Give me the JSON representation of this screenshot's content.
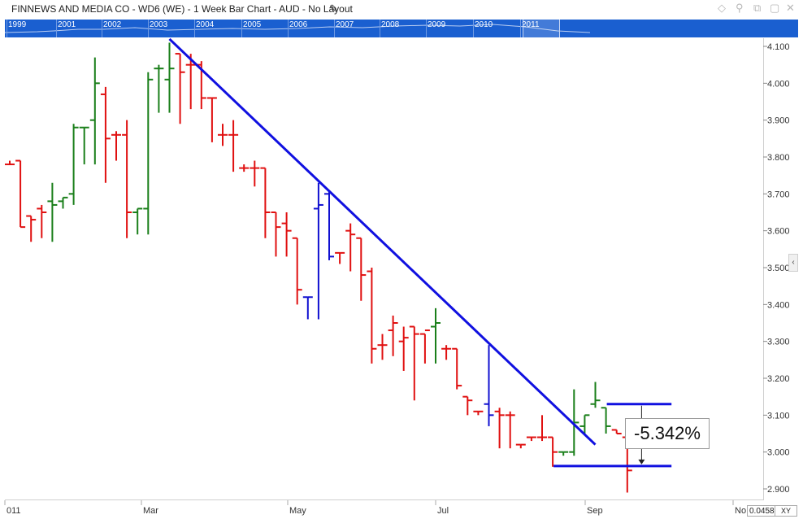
{
  "window": {
    "title": "FINNEWS AND MEDIA CO - WD6 (WE) - 1 Week Bar Chart - AUD - No Layout",
    "icons": [
      "diamond-icon",
      "pin-icon",
      "restore-icon",
      "maximize-icon",
      "close-icon"
    ]
  },
  "navigator": {
    "years": [
      "1999",
      "2001",
      "2002",
      "2003",
      "2004",
      "2005",
      "2006",
      "2007",
      "2008",
      "2009",
      "2010",
      "2011"
    ]
  },
  "chart_data": {
    "type": "ohlc",
    "currency": "AUD",
    "interval": "1 Week",
    "x_tick_labels": [
      "011",
      "Mar",
      "May",
      "Jul",
      "Sep",
      "No"
    ],
    "y_tick_labels": [
      "4.100",
      "4.000",
      "3.900",
      "3.800",
      "3.700",
      "3.600",
      "3.500",
      "3.400",
      "3.300",
      "3.200",
      "3.100",
      "3.000",
      "2.900"
    ],
    "ylim": [
      2.88,
      4.12
    ],
    "colors": {
      "up": "#1a7f1a",
      "down": "#e01010",
      "neutral": "#1010d0",
      "drawing": "#1010e0"
    },
    "bars": [
      {
        "o": 3.78,
        "h": 3.79,
        "l": 3.78,
        "c": 3.78,
        "dir": "down"
      },
      {
        "o": 3.79,
        "h": 3.79,
        "l": 3.61,
        "c": 3.61,
        "dir": "down"
      },
      {
        "o": 3.64,
        "h": 3.64,
        "l": 3.57,
        "c": 3.63,
        "dir": "down"
      },
      {
        "o": 3.66,
        "h": 3.67,
        "l": 3.58,
        "c": 3.65,
        "dir": "down"
      },
      {
        "o": 3.68,
        "h": 3.73,
        "l": 3.57,
        "c": 3.67,
        "dir": "up"
      },
      {
        "o": 3.68,
        "h": 3.69,
        "l": 3.66,
        "c": 3.69,
        "dir": "up"
      },
      {
        "o": 3.7,
        "h": 3.89,
        "l": 3.67,
        "c": 3.88,
        "dir": "up"
      },
      {
        "o": 3.88,
        "h": 3.88,
        "l": 3.78,
        "c": 3.88,
        "dir": "up"
      },
      {
        "o": 3.9,
        "h": 4.07,
        "l": 3.78,
        "c": 4.0,
        "dir": "up"
      },
      {
        "o": 3.97,
        "h": 3.99,
        "l": 3.73,
        "c": 3.85,
        "dir": "down"
      },
      {
        "o": 3.86,
        "h": 3.87,
        "l": 3.79,
        "c": 3.86,
        "dir": "down"
      },
      {
        "o": 3.86,
        "h": 3.9,
        "l": 3.58,
        "c": 3.65,
        "dir": "down"
      },
      {
        "o": 3.65,
        "h": 3.66,
        "l": 3.59,
        "c": 3.66,
        "dir": "up"
      },
      {
        "o": 3.66,
        "h": 4.03,
        "l": 3.59,
        "c": 4.01,
        "dir": "up"
      },
      {
        "o": 4.04,
        "h": 4.05,
        "l": 3.92,
        "c": 4.04,
        "dir": "up"
      },
      {
        "o": 4.01,
        "h": 4.11,
        "l": 3.92,
        "c": 4.04,
        "dir": "up"
      },
      {
        "o": 4.08,
        "h": 4.08,
        "l": 3.89,
        "c": 4.03,
        "dir": "down"
      },
      {
        "o": 4.05,
        "h": 4.08,
        "l": 3.93,
        "c": 4.05,
        "dir": "down"
      },
      {
        "o": 4.05,
        "h": 4.06,
        "l": 3.93,
        "c": 3.96,
        "dir": "down"
      },
      {
        "o": 3.96,
        "h": 3.96,
        "l": 3.84,
        "c": 3.96,
        "dir": "down"
      },
      {
        "o": 3.86,
        "h": 3.89,
        "l": 3.83,
        "c": 3.86,
        "dir": "down"
      },
      {
        "o": 3.86,
        "h": 3.9,
        "l": 3.76,
        "c": 3.86,
        "dir": "down"
      },
      {
        "o": 3.77,
        "h": 3.78,
        "l": 3.76,
        "c": 3.77,
        "dir": "down"
      },
      {
        "o": 3.77,
        "h": 3.79,
        "l": 3.72,
        "c": 3.77,
        "dir": "down"
      },
      {
        "o": 3.77,
        "h": 3.77,
        "l": 3.58,
        "c": 3.65,
        "dir": "down"
      },
      {
        "o": 3.65,
        "h": 3.65,
        "l": 3.53,
        "c": 3.61,
        "dir": "down"
      },
      {
        "o": 3.62,
        "h": 3.65,
        "l": 3.53,
        "c": 3.6,
        "dir": "down"
      },
      {
        "o": 3.58,
        "h": 3.58,
        "l": 3.4,
        "c": 3.44,
        "dir": "down"
      },
      {
        "o": 3.42,
        "h": 3.42,
        "l": 3.36,
        "c": 3.42,
        "dir": "neutral"
      },
      {
        "o": 3.66,
        "h": 3.73,
        "l": 3.36,
        "c": 3.67,
        "dir": "neutral"
      },
      {
        "o": 3.7,
        "h": 3.71,
        "l": 3.52,
        "c": 3.53,
        "dir": "neutral"
      },
      {
        "o": 3.54,
        "h": 3.54,
        "l": 3.51,
        "c": 3.54,
        "dir": "down"
      },
      {
        "o": 3.6,
        "h": 3.62,
        "l": 3.49,
        "c": 3.59,
        "dir": "down"
      },
      {
        "o": 3.58,
        "h": 3.58,
        "l": 3.41,
        "c": 3.48,
        "dir": "down"
      },
      {
        "o": 3.49,
        "h": 3.5,
        "l": 3.24,
        "c": 3.28,
        "dir": "down"
      },
      {
        "o": 3.29,
        "h": 3.32,
        "l": 3.25,
        "c": 3.29,
        "dir": "down"
      },
      {
        "o": 3.33,
        "h": 3.37,
        "l": 3.26,
        "c": 3.35,
        "dir": "down"
      },
      {
        "o": 3.3,
        "h": 3.34,
        "l": 3.22,
        "c": 3.31,
        "dir": "down"
      },
      {
        "o": 3.34,
        "h": 3.34,
        "l": 3.14,
        "c": 3.32,
        "dir": "down"
      },
      {
        "o": 3.32,
        "h": 3.32,
        "l": 3.24,
        "c": 3.33,
        "dir": "down"
      },
      {
        "o": 3.34,
        "h": 3.39,
        "l": 3.24,
        "c": 3.35,
        "dir": "up"
      },
      {
        "o": 3.28,
        "h": 3.29,
        "l": 3.25,
        "c": 3.28,
        "dir": "down"
      },
      {
        "o": 3.28,
        "h": 3.28,
        "l": 3.17,
        "c": 3.18,
        "dir": "down"
      },
      {
        "o": 3.15,
        "h": 3.15,
        "l": 3.1,
        "c": 3.14,
        "dir": "down"
      },
      {
        "o": 3.11,
        "h": 3.11,
        "l": 3.1,
        "c": 3.11,
        "dir": "down"
      },
      {
        "o": 3.13,
        "h": 3.29,
        "l": 3.07,
        "c": 3.1,
        "dir": "neutral"
      },
      {
        "o": 3.11,
        "h": 3.12,
        "l": 3.01,
        "c": 3.1,
        "dir": "down"
      },
      {
        "o": 3.1,
        "h": 3.11,
        "l": 3.01,
        "c": 3.1,
        "dir": "down"
      },
      {
        "o": 3.02,
        "h": 3.02,
        "l": 3.01,
        "c": 3.02,
        "dir": "down"
      },
      {
        "o": 3.04,
        "h": 3.04,
        "l": 3.03,
        "c": 3.04,
        "dir": "down"
      },
      {
        "o": 3.04,
        "h": 3.1,
        "l": 3.03,
        "c": 3.04,
        "dir": "down"
      },
      {
        "o": 3.04,
        "h": 3.04,
        "l": 2.96,
        "c": 3.0,
        "dir": "down"
      },
      {
        "o": 3.0,
        "h": 3.0,
        "l": 2.99,
        "c": 3.0,
        "dir": "up"
      },
      {
        "o": 3.0,
        "h": 3.17,
        "l": 2.99,
        "c": 3.08,
        "dir": "up"
      },
      {
        "o": 3.07,
        "h": 3.1,
        "l": 3.05,
        "c": 3.1,
        "dir": "up"
      },
      {
        "o": 3.13,
        "h": 3.19,
        "l": 3.12,
        "c": 3.14,
        "dir": "up"
      },
      {
        "o": 3.12,
        "h": 3.12,
        "l": 3.05,
        "c": 3.07,
        "dir": "up"
      },
      {
        "o": 3.06,
        "h": 3.06,
        "l": 3.05,
        "c": 3.05,
        "dir": "down"
      },
      {
        "o": 3.04,
        "h": 3.04,
        "l": 2.89,
        "c": 2.95,
        "dir": "down"
      }
    ],
    "trendline": {
      "bar_start": 15,
      "price_start": 4.12,
      "bar_end": 55,
      "price_end": 3.02
    },
    "measure": {
      "label": "-5.342%",
      "bar_start": 56,
      "bar_end": 62,
      "price_top": 3.13,
      "bar_low_start": 51,
      "price_bottom": 2.962
    }
  },
  "footer": {
    "last_price": "0.0458",
    "xy_label": "XY"
  }
}
